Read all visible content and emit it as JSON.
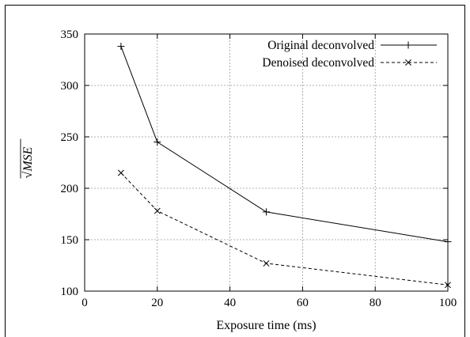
{
  "chart_data": {
    "type": "line",
    "title": "",
    "xlabel": "Exposure time (ms)",
    "ylabel": "MSE",
    "ylabel_prefix": "√",
    "xlim": [
      0,
      100
    ],
    "ylim": [
      100,
      350
    ],
    "xticks": [
      0,
      20,
      40,
      60,
      80,
      100
    ],
    "yticks": [
      100,
      150,
      200,
      250,
      300,
      350
    ],
    "grid": true,
    "legend_position": "top-right",
    "x": [
      10,
      20,
      50,
      100
    ],
    "series": [
      {
        "name": "Original deconvolved",
        "values": [
          338,
          245,
          177,
          148
        ],
        "marker": "+",
        "dash": "solid"
      },
      {
        "name": "Denoised deconvolved",
        "values": [
          215,
          178,
          127,
          106
        ],
        "marker": "x",
        "dash": "dashed"
      }
    ]
  }
}
